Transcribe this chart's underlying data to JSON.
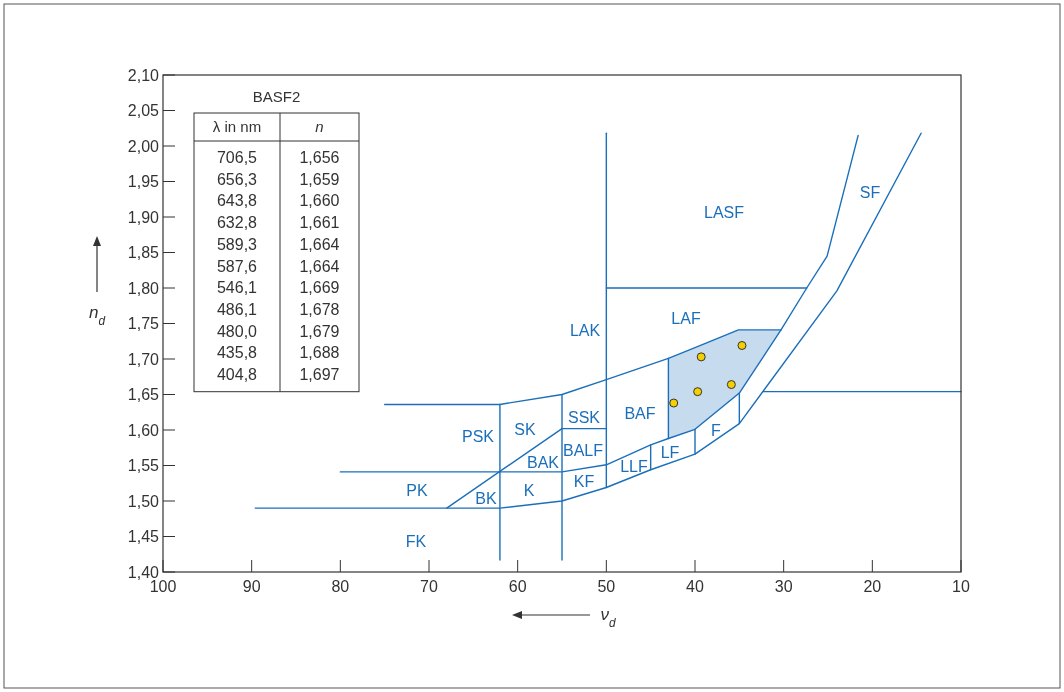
{
  "chart_data": {
    "type": "scatter",
    "xlabel": "ν$_{d}$",
    "ylabel": "n$_{d}$",
    "xlim": [
      100,
      10
    ],
    "xticks": [
      100,
      90,
      80,
      70,
      60,
      50,
      40,
      30,
      20,
      10
    ],
    "ylim": [
      1.4,
      2.1
    ],
    "yticks": [
      {
        "value": 1.4,
        "label": "1,40"
      },
      {
        "value": 1.45,
        "label": "1,45"
      },
      {
        "value": 1.5,
        "label": "1,50"
      },
      {
        "value": 1.55,
        "label": "1,55"
      },
      {
        "value": 1.6,
        "label": "1,60"
      },
      {
        "value": 1.65,
        "label": "1,65"
      },
      {
        "value": 1.7,
        "label": "1,70"
      },
      {
        "value": 1.75,
        "label": "1,75"
      },
      {
        "value": 1.8,
        "label": "1,80"
      },
      {
        "value": 1.85,
        "label": "1,85"
      },
      {
        "value": 1.9,
        "label": "1,90"
      },
      {
        "value": 1.95,
        "label": "1,95"
      },
      {
        "value": 2.0,
        "label": "2,00"
      },
      {
        "value": 2.05,
        "label": "2,05"
      },
      {
        "value": 2.1,
        "label": "2,10"
      }
    ],
    "series": [
      {
        "type": "line",
        "color": "#1b6fba",
        "x": [
          50,
          50
        ],
        "values": [
          2.018,
          1.519
        ]
      },
      {
        "type": "line",
        "color": "#1b6fba",
        "x": [
          50,
          27.4
        ],
        "values": [
          1.8,
          1.8
        ]
      },
      {
        "type": "line",
        "color": "#1b6fba",
        "x": [
          75,
          62,
          55,
          50,
          43,
          40,
          35.1,
          30.3
        ],
        "values": [
          1.636,
          1.636,
          1.65,
          1.671,
          1.701,
          1.716,
          1.741,
          1.741
        ],
        "lower": [
          null,
          null,
          null,
          null,
          1.588,
          1.601,
          1.65,
          1.741
        ],
        "upper": [
          null,
          null,
          null,
          null,
          1.701,
          1.716,
          1.741,
          1.741
        ]
      },
      {
        "type": "line",
        "color": "#1b6fba",
        "x": [
          62,
          62
        ],
        "values": [
          1.636,
          1.417
        ]
      },
      {
        "type": "line",
        "color": "#1b6fba",
        "x": [
          55,
          55
        ],
        "values": [
          1.65,
          1.417
        ]
      },
      {
        "type": "line",
        "color": "#1b6fba",
        "x": [
          55,
          50
        ],
        "values": [
          1.602,
          1.602
        ]
      },
      {
        "type": "line",
        "color": "#1b6fba",
        "x": [
          68,
          55
        ],
        "values": [
          1.49,
          1.602
        ]
      },
      {
        "type": "line",
        "color": "#1b6fba",
        "x": [
          80,
          55,
          50,
          45,
          43,
          40,
          35,
          30.3,
          27.4,
          25.1,
          21.6
        ],
        "values": [
          1.541,
          1.541,
          1.551,
          1.579,
          1.588,
          1.601,
          1.652,
          1.741,
          1.8,
          1.845,
          2.015
        ]
      },
      {
        "type": "line",
        "color": "#1b6fba",
        "x": [
          89.6,
          62,
          55,
          50,
          45,
          40,
          35,
          24,
          14.5
        ],
        "values": [
          1.49,
          1.49,
          1.5,
          1.519,
          1.544,
          1.566,
          1.609,
          1.796,
          2.018
        ]
      },
      {
        "type": "line",
        "color": "#1b6fba",
        "x": [
          43,
          43
        ],
        "values": [
          1.701,
          1.588
        ]
      },
      {
        "type": "line",
        "color": "#1b6fba",
        "x": [
          45,
          45
        ],
        "values": [
          1.579,
          1.544
        ]
      },
      {
        "type": "line",
        "color": "#1b6fba",
        "x": [
          40,
          40
        ],
        "values": [
          1.601,
          1.566
        ]
      },
      {
        "type": "line",
        "color": "#1b6fba",
        "x": [
          35,
          35
        ],
        "values": [
          1.652,
          1.609
        ]
      },
      {
        "type": "line",
        "color": "#1b6fba",
        "x": [
          32.3,
          10
        ],
        "values": [
          1.654,
          1.654
        ]
      },
      {
        "marker": "circle",
        "color": "#f5d000",
        "x": [
          42.4,
          39.3,
          34.7,
          39.7,
          35.9
        ],
        "values": [
          1.638,
          1.703,
          1.719,
          1.654,
          1.664
        ]
      }
    ],
    "annotations": [
      "LASF",
      "SF",
      "LAK",
      "LAF",
      "BAF",
      "SSK",
      "PSK",
      "SK",
      "BALF",
      "BAK",
      "LLF",
      "LF",
      "F",
      "PK",
      "BK",
      "K",
      "KF",
      "FK",
      "BASF2",
      "λ in nm",
      "n",
      "706,5",
      "1,656",
      "656,3",
      "1,659",
      "643,8",
      "1,660",
      "632,8",
      "1,661",
      "589,3",
      "1,664",
      "587,6",
      "1,664",
      "546,1",
      "1,669",
      "486,1",
      "1,678",
      "480,0",
      "1,679",
      "435,8",
      "1,688",
      "404,8",
      "1,697"
    ]
  }
}
